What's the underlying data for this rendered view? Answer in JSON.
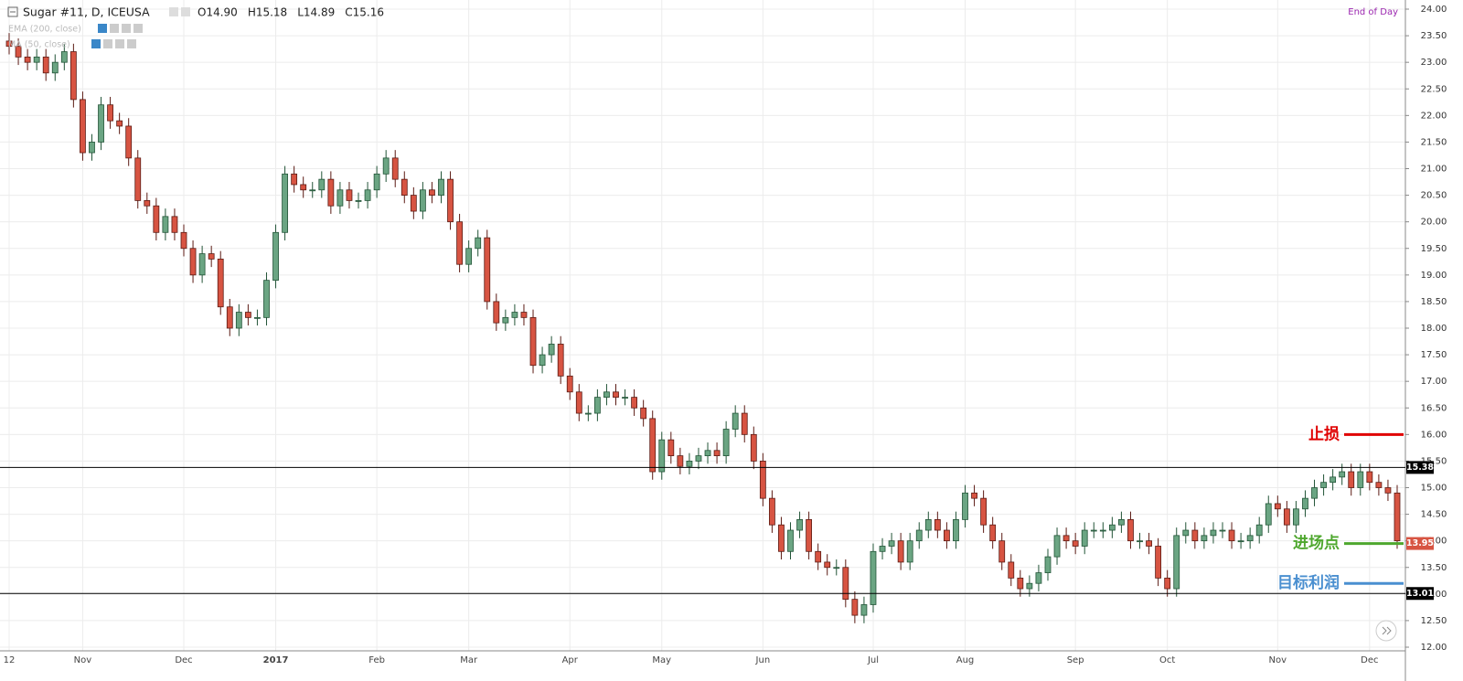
{
  "chart_data": {
    "type": "candlestick",
    "title": "Sugar #11, D, ICEUSA",
    "ohlc_readout": [
      "O14.90",
      "H15.18",
      "L14.89",
      "C15.16"
    ],
    "indicators": [
      "EMA (200, close)",
      "MA (50, close)"
    ],
    "note": "End of Day",
    "up_color": "#6ba583",
    "down_color": "#d75442",
    "ylim": [
      12,
      24
    ],
    "yticks": [
      {
        "value": 12,
        "label": "12.00"
      },
      {
        "value": 12.5,
        "label": "12.50"
      },
      {
        "value": 13,
        "label": "13.00"
      },
      {
        "value": 13.5,
        "label": "13.50"
      },
      {
        "value": 14,
        "label": "14.00"
      },
      {
        "value": 14.5,
        "label": "14.50"
      },
      {
        "value": 15,
        "label": "15.00"
      },
      {
        "value": 15.5,
        "label": "15.50"
      },
      {
        "value": 16,
        "label": "16.00"
      },
      {
        "value": 16.5,
        "label": "16.50"
      },
      {
        "value": 17,
        "label": "17.00"
      },
      {
        "value": 17.5,
        "label": "17.50"
      },
      {
        "value": 18,
        "label": "18.00"
      },
      {
        "value": 18.5,
        "label": "18.50"
      },
      {
        "value": 19,
        "label": "19.00"
      },
      {
        "value": 19.5,
        "label": "19.50"
      },
      {
        "value": 20,
        "label": "20.00"
      },
      {
        "value": 20.5,
        "label": "20.50"
      },
      {
        "value": 21,
        "label": "21.00"
      },
      {
        "value": 21.5,
        "label": "21.50"
      },
      {
        "value": 22,
        "label": "22.00"
      },
      {
        "value": 22.5,
        "label": "22.50"
      },
      {
        "value": 23,
        "label": "23.00"
      },
      {
        "value": 23.5,
        "label": "23.50"
      },
      {
        "value": 24,
        "label": "24.00"
      }
    ],
    "grid": true,
    "price_labels": [
      {
        "value": 15.38,
        "label": "15.38",
        "color": "#000000",
        "line": true
      },
      {
        "value": 13.01,
        "label": "13.01",
        "color": "#000000",
        "line": true
      },
      {
        "value": 13.95,
        "label": "13.95",
        "color": "#d75442",
        "line": false
      }
    ],
    "annotations": [
      {
        "text": "止损",
        "value": 16,
        "color": "#e00000"
      },
      {
        "text": "进场点",
        "value": 13.95,
        "color": "#4ea72e"
      },
      {
        "text": "目标利润",
        "value": 13.2,
        "color": "#4a8fd0"
      }
    ],
    "categories": [
      "12",
      null,
      null,
      null,
      null,
      null,
      null,
      null,
      "Nov",
      null,
      null,
      null,
      null,
      null,
      null,
      null,
      null,
      null,
      null,
      "Dec",
      null,
      null,
      null,
      null,
      null,
      null,
      null,
      null,
      null,
      "2017",
      null,
      null,
      null,
      null,
      null,
      null,
      null,
      null,
      null,
      null,
      "Feb",
      null,
      null,
      null,
      null,
      null,
      null,
      null,
      null,
      null,
      "Mar",
      null,
      null,
      null,
      null,
      null,
      null,
      null,
      null,
      null,
      null,
      "Apr",
      null,
      null,
      null,
      null,
      null,
      null,
      null,
      null,
      null,
      "May",
      null,
      null,
      null,
      null,
      null,
      null,
      null,
      null,
      null,
      null,
      "Jun",
      null,
      null,
      null,
      null,
      null,
      null,
      null,
      null,
      null,
      null,
      null,
      "Jul",
      null,
      null,
      null,
      null,
      null,
      null,
      null,
      null,
      null,
      "Aug",
      null,
      null,
      null,
      null,
      null,
      null,
      null,
      null,
      null,
      null,
      null,
      "Sep",
      null,
      null,
      null,
      null,
      null,
      null,
      null,
      null,
      null,
      "Oct",
      null,
      null,
      null,
      null,
      null,
      null,
      null,
      null,
      null,
      null,
      null,
      "Nov",
      null,
      null,
      null,
      null,
      null,
      null,
      null,
      null,
      null,
      "Dec",
      null,
      null,
      null
    ],
    "ohlc": [
      [
        23.4,
        23.55,
        23.15,
        23.3
      ],
      [
        23.3,
        23.45,
        22.95,
        23.1
      ],
      [
        23.1,
        23.25,
        22.85,
        23.0
      ],
      [
        23.0,
        23.25,
        22.85,
        23.1
      ],
      [
        23.1,
        23.25,
        22.65,
        22.8
      ],
      [
        22.8,
        23.15,
        22.65,
        23.0
      ],
      [
        23.0,
        23.35,
        22.85,
        23.2
      ],
      [
        23.2,
        23.35,
        22.15,
        22.3
      ],
      [
        22.3,
        22.45,
        21.15,
        21.3
      ],
      [
        21.3,
        21.65,
        21.15,
        21.5
      ],
      [
        21.5,
        22.35,
        21.35,
        22.2
      ],
      [
        22.2,
        22.35,
        21.75,
        21.9
      ],
      [
        21.9,
        22.05,
        21.65,
        21.8
      ],
      [
        21.8,
        21.95,
        21.05,
        21.2
      ],
      [
        21.2,
        21.35,
        20.25,
        20.4
      ],
      [
        20.4,
        20.55,
        20.15,
        20.3
      ],
      [
        20.3,
        20.45,
        19.65,
        19.8
      ],
      [
        19.8,
        20.25,
        19.65,
        20.1
      ],
      [
        20.1,
        20.25,
        19.65,
        19.8
      ],
      [
        19.8,
        19.95,
        19.35,
        19.5
      ],
      [
        19.5,
        19.65,
        18.85,
        19.0
      ],
      [
        19.0,
        19.55,
        18.85,
        19.4
      ],
      [
        19.4,
        19.55,
        19.15,
        19.3
      ],
      [
        19.3,
        19.45,
        18.25,
        18.4
      ],
      [
        18.4,
        18.55,
        17.85,
        18.0
      ],
      [
        18.0,
        18.45,
        17.85,
        18.3
      ],
      [
        18.3,
        18.45,
        18.05,
        18.2
      ],
      [
        18.2,
        18.35,
        18.05,
        18.2
      ],
      [
        18.2,
        19.05,
        18.05,
        18.9
      ],
      [
        18.9,
        19.95,
        18.75,
        19.8
      ],
      [
        19.8,
        21.05,
        19.65,
        20.9
      ],
      [
        20.9,
        21.05,
        20.55,
        20.7
      ],
      [
        20.7,
        20.85,
        20.45,
        20.6
      ],
      [
        20.6,
        20.75,
        20.45,
        20.6
      ],
      [
        20.6,
        20.95,
        20.45,
        20.8
      ],
      [
        20.8,
        20.95,
        20.15,
        20.3
      ],
      [
        20.3,
        20.75,
        20.15,
        20.6
      ],
      [
        20.6,
        20.75,
        20.25,
        20.4
      ],
      [
        20.4,
        20.55,
        20.25,
        20.4
      ],
      [
        20.4,
        20.75,
        20.25,
        20.6
      ],
      [
        20.6,
        21.05,
        20.45,
        20.9
      ],
      [
        20.9,
        21.35,
        20.75,
        21.2
      ],
      [
        21.2,
        21.35,
        20.65,
        20.8
      ],
      [
        20.8,
        20.95,
        20.35,
        20.5
      ],
      [
        20.5,
        20.65,
        20.05,
        20.2
      ],
      [
        20.2,
        20.75,
        20.05,
        20.6
      ],
      [
        20.6,
        20.75,
        20.35,
        20.5
      ],
      [
        20.5,
        20.95,
        20.35,
        20.8
      ],
      [
        20.8,
        20.95,
        19.85,
        20.0
      ],
      [
        20.0,
        20.15,
        19.05,
        19.2
      ],
      [
        19.2,
        19.65,
        19.05,
        19.5
      ],
      [
        19.5,
        19.85,
        19.35,
        19.7
      ],
      [
        19.7,
        19.85,
        18.35,
        18.5
      ],
      [
        18.5,
        18.65,
        17.95,
        18.1
      ],
      [
        18.1,
        18.35,
        17.95,
        18.2
      ],
      [
        18.2,
        18.45,
        18.05,
        18.3
      ],
      [
        18.3,
        18.45,
        18.05,
        18.2
      ],
      [
        18.2,
        18.35,
        17.15,
        17.3
      ],
      [
        17.3,
        17.65,
        17.15,
        17.5
      ],
      [
        17.5,
        17.85,
        17.35,
        17.7
      ],
      [
        17.7,
        17.85,
        16.95,
        17.1
      ],
      [
        17.1,
        17.25,
        16.65,
        16.8
      ],
      [
        16.8,
        16.95,
        16.25,
        16.4
      ],
      [
        16.4,
        16.55,
        16.25,
        16.4
      ],
      [
        16.4,
        16.85,
        16.25,
        16.7
      ],
      [
        16.7,
        16.95,
        16.55,
        16.8
      ],
      [
        16.8,
        16.95,
        16.55,
        16.7
      ],
      [
        16.7,
        16.85,
        16.55,
        16.7
      ],
      [
        16.7,
        16.85,
        16.35,
        16.5
      ],
      [
        16.5,
        16.65,
        16.15,
        16.3
      ],
      [
        16.3,
        16.45,
        15.15,
        15.3
      ],
      [
        15.3,
        16.05,
        15.15,
        15.9
      ],
      [
        15.9,
        16.05,
        15.45,
        15.6
      ],
      [
        15.6,
        15.75,
        15.25,
        15.4
      ],
      [
        15.4,
        15.65,
        15.25,
        15.5
      ],
      [
        15.5,
        15.75,
        15.35,
        15.6
      ],
      [
        15.6,
        15.85,
        15.45,
        15.7
      ],
      [
        15.7,
        15.85,
        15.45,
        15.6
      ],
      [
        15.6,
        16.25,
        15.45,
        16.1
      ],
      [
        16.1,
        16.55,
        15.95,
        16.4
      ],
      [
        16.4,
        16.55,
        15.85,
        16.0
      ],
      [
        16.0,
        16.15,
        15.35,
        15.5
      ],
      [
        15.5,
        15.65,
        14.65,
        14.8
      ],
      [
        14.8,
        14.95,
        14.15,
        14.3
      ],
      [
        14.3,
        14.45,
        13.65,
        13.8
      ],
      [
        13.8,
        14.35,
        13.65,
        14.2
      ],
      [
        14.2,
        14.55,
        14.05,
        14.4
      ],
      [
        14.4,
        14.55,
        13.65,
        13.8
      ],
      [
        13.8,
        13.95,
        13.45,
        13.6
      ],
      [
        13.6,
        13.75,
        13.35,
        13.5
      ],
      [
        13.5,
        13.65,
        13.35,
        13.5
      ],
      [
        13.5,
        13.65,
        12.75,
        12.9
      ],
      [
        12.9,
        13.05,
        12.45,
        12.6
      ],
      [
        12.6,
        12.95,
        12.45,
        12.8
      ],
      [
        12.8,
        13.95,
        12.65,
        13.8
      ],
      [
        13.8,
        14.05,
        13.65,
        13.9
      ],
      [
        13.9,
        14.15,
        13.75,
        14.0
      ],
      [
        14.0,
        14.15,
        13.45,
        13.6
      ],
      [
        13.6,
        14.15,
        13.45,
        14.0
      ],
      [
        14.0,
        14.35,
        13.85,
        14.2
      ],
      [
        14.2,
        14.55,
        14.05,
        14.4
      ],
      [
        14.4,
        14.55,
        14.05,
        14.2
      ],
      [
        14.2,
        14.35,
        13.85,
        14.0
      ],
      [
        14.0,
        14.55,
        13.85,
        14.4
      ],
      [
        14.4,
        15.05,
        14.25,
        14.9
      ],
      [
        14.9,
        15.05,
        14.65,
        14.8
      ],
      [
        14.8,
        14.95,
        14.15,
        14.3
      ],
      [
        14.3,
        14.45,
        13.85,
        14.0
      ],
      [
        14.0,
        14.15,
        13.45,
        13.6
      ],
      [
        13.6,
        13.75,
        13.15,
        13.3
      ],
      [
        13.3,
        13.45,
        12.95,
        13.1
      ],
      [
        13.1,
        13.35,
        12.95,
        13.2
      ],
      [
        13.2,
        13.55,
        13.05,
        13.4
      ],
      [
        13.4,
        13.85,
        13.25,
        13.7
      ],
      [
        13.7,
        14.25,
        13.55,
        14.1
      ],
      [
        14.1,
        14.25,
        13.85,
        14.0
      ],
      [
        14.0,
        14.15,
        13.75,
        13.9
      ],
      [
        13.9,
        14.35,
        13.75,
        14.2
      ],
      [
        14.2,
        14.35,
        14.05,
        14.2
      ],
      [
        14.2,
        14.35,
        14.05,
        14.2
      ],
      [
        14.2,
        14.45,
        14.05,
        14.3
      ],
      [
        14.3,
        14.55,
        14.15,
        14.4
      ],
      [
        14.4,
        14.55,
        13.85,
        14.0
      ],
      [
        14.0,
        14.15,
        13.85,
        14.0
      ],
      [
        14.0,
        14.15,
        13.75,
        13.9
      ],
      [
        13.9,
        14.05,
        13.15,
        13.3
      ],
      [
        13.3,
        13.45,
        12.95,
        13.1
      ],
      [
        13.1,
        14.25,
        12.95,
        14.1
      ],
      [
        14.1,
        14.35,
        13.95,
        14.2
      ],
      [
        14.2,
        14.35,
        13.85,
        14.0
      ],
      [
        14.0,
        14.25,
        13.85,
        14.1
      ],
      [
        14.1,
        14.35,
        13.95,
        14.2
      ],
      [
        14.2,
        14.35,
        14.05,
        14.2
      ],
      [
        14.2,
        14.35,
        13.85,
        14.0
      ],
      [
        14.0,
        14.15,
        13.85,
        14.0
      ],
      [
        14.0,
        14.25,
        13.85,
        14.1
      ],
      [
        14.1,
        14.45,
        13.95,
        14.3
      ],
      [
        14.3,
        14.85,
        14.15,
        14.7
      ],
      [
        14.7,
        14.85,
        14.45,
        14.6
      ],
      [
        14.6,
        14.75,
        14.15,
        14.3
      ],
      [
        14.3,
        14.75,
        14.15,
        14.6
      ],
      [
        14.6,
        14.95,
        14.45,
        14.8
      ],
      [
        14.8,
        15.15,
        14.65,
        15.0
      ],
      [
        15.0,
        15.25,
        14.85,
        15.1
      ],
      [
        15.1,
        15.35,
        14.95,
        15.2
      ],
      [
        15.2,
        15.45,
        15.05,
        15.3
      ],
      [
        15.3,
        15.45,
        14.85,
        15.0
      ],
      [
        15.0,
        15.45,
        14.85,
        15.3
      ],
      [
        15.3,
        15.45,
        14.95,
        15.1
      ],
      [
        15.1,
        15.25,
        14.85,
        15.0
      ],
      [
        15.0,
        15.15,
        14.75,
        14.9
      ],
      [
        14.9,
        15.05,
        13.85,
        14.0
      ]
    ]
  }
}
